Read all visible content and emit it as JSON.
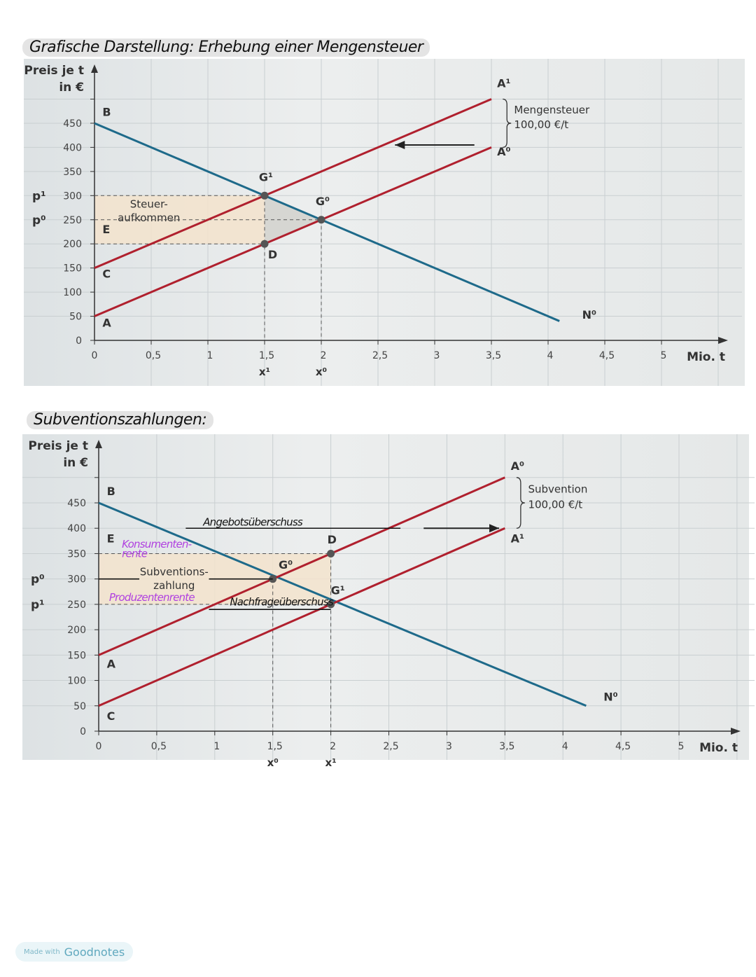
{
  "headings": {
    "tax": "Grafische Darstellung:  Erhebung einer Mengensteuer",
    "subsidy": "Subventionszahlungen:"
  },
  "badge": {
    "small": "Made with",
    "brand": "Goodnotes"
  },
  "colors": {
    "demand": "#1e6a8a",
    "supply": "#b0202e",
    "shade": "#f3e3cc",
    "triangle": "#d6d6d2"
  },
  "chart_data": [
    {
      "type": "line",
      "title": "",
      "ylabel": [
        "Preis je t",
        "in €"
      ],
      "xlabel": "Mio. t",
      "xlim": [
        0,
        5.5
      ],
      "ylim": [
        0,
        500
      ],
      "x_ticks": [
        0,
        0.5,
        1,
        1.5,
        2,
        2.5,
        3,
        3.5,
        4,
        4.5,
        5
      ],
      "x_tick_labels": [
        "0",
        "0,5",
        "1",
        "1,5",
        "2",
        "2,5",
        "3",
        "3,5",
        "4",
        "4,5",
        "5"
      ],
      "y_ticks": [
        0,
        50,
        100,
        150,
        200,
        250,
        300,
        350,
        400,
        450
      ],
      "y_tick_labels": [
        "0",
        "50",
        "100",
        "150",
        "200",
        "250",
        "300",
        "350",
        "400",
        "450"
      ],
      "grid": true,
      "series": [
        {
          "id": "demand",
          "name": "N⁰",
          "color": "demand",
          "points": [
            [
              0,
              450
            ],
            [
              4.1,
              40
            ]
          ]
        },
        {
          "id": "supply0",
          "name": "A⁰",
          "color": "supply",
          "points": [
            [
              0,
              50
            ],
            [
              3.5,
              400
            ]
          ]
        },
        {
          "id": "supply1",
          "name": "A¹",
          "color": "supply",
          "points": [
            [
              0,
              150
            ],
            [
              3.5,
              500
            ]
          ]
        }
      ],
      "points": [
        {
          "label": "G¹",
          "x": 1.5,
          "y": 300
        },
        {
          "label": "G⁰",
          "x": 2,
          "y": 250
        },
        {
          "label": "D",
          "x": 1.5,
          "y": 200
        }
      ],
      "shade_rect": {
        "x": [
          0,
          1.5
        ],
        "y": [
          200,
          300
        ]
      },
      "shade_triangle": [
        [
          1.5,
          300
        ],
        [
          2,
          250
        ],
        [
          1.5,
          200
        ]
      ],
      "dashed": [
        [
          [
            0,
            300
          ],
          [
            1.5,
            300
          ]
        ],
        [
          [
            0,
            250
          ],
          [
            2,
            250
          ]
        ],
        [
          [
            0,
            200
          ],
          [
            1.5,
            200
          ]
        ],
        [
          [
            1.5,
            300
          ],
          [
            1.5,
            0
          ]
        ],
        [
          [
            2,
            250
          ],
          [
            2,
            0
          ]
        ]
      ],
      "letters": [
        {
          "text": "B",
          "x": 0.07,
          "y": 465
        },
        {
          "text": "E",
          "x": 0.07,
          "y": 222
        },
        {
          "text": "C",
          "x": 0.07,
          "y": 130
        },
        {
          "text": "A",
          "x": 0.07,
          "y": 28
        },
        {
          "text": "A¹",
          "x": 3.55,
          "y": 525
        },
        {
          "text": "A⁰",
          "x": 3.55,
          "y": 383
        },
        {
          "text": "G¹",
          "x": 1.45,
          "y": 330
        },
        {
          "text": "G⁰",
          "x": 1.95,
          "y": 280
        },
        {
          "text": "D",
          "x": 1.53,
          "y": 170
        },
        {
          "text": "N⁰",
          "x": 4.3,
          "y": 45
        }
      ],
      "notes": [
        {
          "text": "Steuer-",
          "x": 0.48,
          "y": 275,
          "anchor": "middle"
        },
        {
          "text": "aufkommen",
          "x": 0.48,
          "y": 247,
          "anchor": "middle"
        },
        {
          "text": "Mengensteuer",
          "x": 3.7,
          "y": 470,
          "anchor": "start"
        },
        {
          "text": "100,00 €/t",
          "x": 3.7,
          "y": 440,
          "anchor": "start"
        }
      ],
      "handwritten": [],
      "brace": {
        "x": 3.6,
        "y": [
          400,
          500
        ]
      },
      "arrow": {
        "from": [
          3.35,
          405
        ],
        "to": [
          2.65,
          405
        ]
      },
      "lines": [],
      "left_labels": [
        {
          "text": "p¹",
          "y": 300
        },
        {
          "text": "p⁰",
          "y": 250
        }
      ],
      "bottom_labels": [
        {
          "text": "x¹",
          "x": 1.5
        },
        {
          "text": "x⁰",
          "x": 2
        }
      ]
    },
    {
      "type": "line",
      "title": "",
      "ylabel": [
        "Preis je t",
        "in €"
      ],
      "xlabel": "Mio. t",
      "xlim": [
        0,
        5.5
      ],
      "ylim": [
        0,
        500
      ],
      "x_ticks": [
        0,
        0.5,
        1,
        1.5,
        2,
        2.5,
        3,
        3.5,
        4,
        4.5,
        5
      ],
      "x_tick_labels": [
        "0",
        "0,5",
        "1",
        "1,5",
        "2",
        "2,5",
        "3",
        "3,5",
        "4",
        "4,5",
        "5"
      ],
      "y_ticks": [
        0,
        50,
        100,
        150,
        200,
        250,
        300,
        350,
        400,
        450
      ],
      "y_tick_labels": [
        "0",
        "50",
        "100",
        "150",
        "200",
        "250",
        "300",
        "350",
        "400",
        "450"
      ],
      "grid": true,
      "series": [
        {
          "id": "demand",
          "name": "N⁰",
          "color": "demand",
          "points": [
            [
              0,
              450
            ],
            [
              4.2,
              50
            ]
          ]
        },
        {
          "id": "supply0",
          "name": "A⁰",
          "color": "supply",
          "points": [
            [
              0,
              150
            ],
            [
              3.5,
              500
            ]
          ]
        },
        {
          "id": "supply1",
          "name": "A¹",
          "color": "supply",
          "points": [
            [
              0,
              50
            ],
            [
              3.5,
              400
            ]
          ]
        }
      ],
      "points": [
        {
          "label": "G⁰",
          "x": 1.5,
          "y": 300
        },
        {
          "label": "G¹",
          "x": 2,
          "y": 250
        },
        {
          "label": "D",
          "x": 2,
          "y": 350
        }
      ],
      "shade_rect": {
        "x": [
          0,
          2
        ],
        "y": [
          250,
          350
        ]
      },
      "shade_triangle": null,
      "dashed": [
        [
          [
            0,
            350
          ],
          [
            2,
            350
          ]
        ],
        [
          [
            0,
            250
          ],
          [
            2,
            250
          ]
        ],
        [
          [
            1.5,
            300
          ],
          [
            1.5,
            0
          ]
        ],
        [
          [
            2,
            350
          ],
          [
            2,
            0
          ]
        ]
      ],
      "letters": [
        {
          "text": "B",
          "x": 0.07,
          "y": 465
        },
        {
          "text": "E",
          "x": 0.07,
          "y": 372
        },
        {
          "text": "A",
          "x": 0.07,
          "y": 125
        },
        {
          "text": "C",
          "x": 0.07,
          "y": 22
        },
        {
          "text": "A⁰",
          "x": 3.55,
          "y": 515
        },
        {
          "text": "A¹",
          "x": 3.55,
          "y": 372
        },
        {
          "text": "D",
          "x": 1.97,
          "y": 370
        },
        {
          "text": "G⁰",
          "x": 1.55,
          "y": 320
        },
        {
          "text": "G¹",
          "x": 2,
          "y": 270
        },
        {
          "text": "N⁰",
          "x": 4.35,
          "y": 60
        }
      ],
      "notes": [
        {
          "text": "Subventions-",
          "x": 0.65,
          "y": 307,
          "anchor": "middle"
        },
        {
          "text": "zahlung",
          "x": 0.65,
          "y": 280,
          "anchor": "middle"
        },
        {
          "text": "Subvention",
          "x": 3.7,
          "y": 470,
          "anchor": "start"
        },
        {
          "text": "100,00 €/t",
          "x": 3.7,
          "y": 440,
          "anchor": "start"
        }
      ],
      "handwritten": [
        {
          "text": "Angebotsüberschuss",
          "x": 0.9,
          "y": 405,
          "color": "#111"
        },
        {
          "text": "Konsumenten-",
          "x": 0.2,
          "y": 362,
          "color": "#b040e0"
        },
        {
          "text": "rente",
          "x": 0.2,
          "y": 343,
          "color": "#b040e0"
        },
        {
          "text": "Produzentenrente",
          "x": 0.09,
          "y": 257,
          "color": "#b040e0"
        },
        {
          "text": "Nachfrageüberschuss",
          "x": 1.13,
          "y": 248,
          "color": "#111"
        }
      ],
      "brace": {
        "x": 3.6,
        "y": [
          400,
          500
        ]
      },
      "arrow": {
        "from": [
          2.8,
          400
        ],
        "to": [
          3.45,
          400
        ]
      },
      "lines": [
        [
          [
            0.75,
            400
          ],
          [
            2.6,
            400
          ]
        ],
        [
          [
            0,
            300
          ],
          [
            0.35,
            300
          ]
        ],
        [
          [
            0.95,
            300
          ],
          [
            1.5,
            300
          ]
        ],
        [
          [
            0.95,
            240
          ],
          [
            2,
            240
          ]
        ]
      ],
      "left_labels": [
        {
          "text": "p⁰",
          "y": 300
        },
        {
          "text": "p¹",
          "y": 250
        }
      ],
      "bottom_labels": [
        {
          "text": "x⁰",
          "x": 1.5
        },
        {
          "text": "x¹",
          "x": 2
        }
      ]
    }
  ]
}
